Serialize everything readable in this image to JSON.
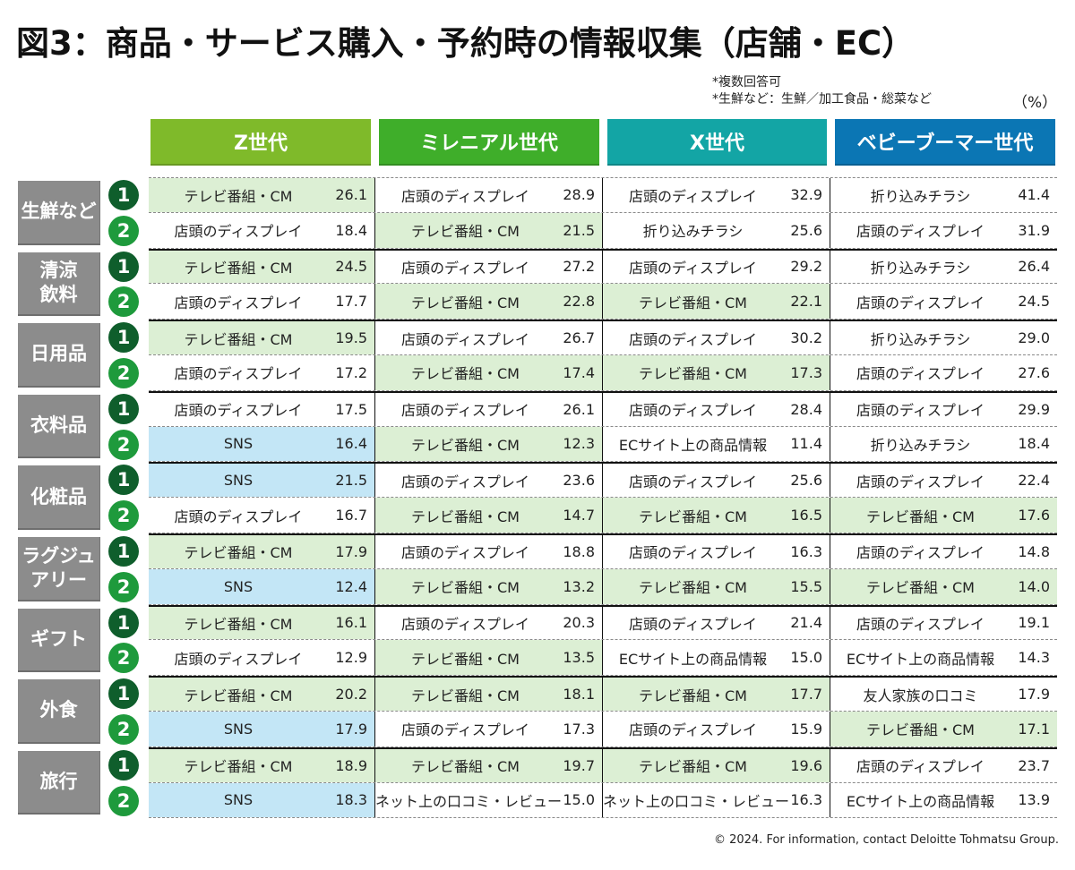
{
  "title": "図3：商品・サービス購入・予約時の情報収集（店舗・EC）",
  "notes": [
    "*複数回答可",
    "*生鮮など：生鮮／加工食品・総菜など"
  ],
  "unit": "（%）",
  "footer": "© 2024. For information, contact Deloitte Tohmatsu Group.",
  "colors": {
    "gen_z": "#7fba2a",
    "millennial": "#3fae2a",
    "gen_x": "#13a5a5",
    "boomer": "#0b76b4",
    "tv_fill": "#dcefd4",
    "sns_fill": "#c3e6f6",
    "category_box": "#8c8c8c",
    "rank1_badge": "#0f5e2c",
    "rank2_badge": "#1e9a3c"
  },
  "generations": [
    {
      "label": "Z世代",
      "color": "#7fba2a"
    },
    {
      "label": "ミレニアル世代",
      "color": "#3fae2a"
    },
    {
      "label": "X世代",
      "color": "#13a5a5"
    },
    {
      "label": "ベビーブーマー世代",
      "color": "#0b76b4"
    }
  ],
  "ranks": [
    "1",
    "2"
  ],
  "categories": [
    {
      "label": "生鮮など",
      "rows": [
        [
          {
            "src": "テレビ番組・CM",
            "val": "26.1",
            "fill": "green"
          },
          {
            "src": "店頭のディスプレイ",
            "val": "28.9",
            "fill": "none"
          },
          {
            "src": "店頭のディスプレイ",
            "val": "32.9",
            "fill": "none"
          },
          {
            "src": "折り込みチラシ",
            "val": "41.4",
            "fill": "none"
          }
        ],
        [
          {
            "src": "店頭のディスプレイ",
            "val": "18.4",
            "fill": "none"
          },
          {
            "src": "テレビ番組・CM",
            "val": "21.5",
            "fill": "green"
          },
          {
            "src": "折り込みチラシ",
            "val": "25.6",
            "fill": "none"
          },
          {
            "src": "店頭のディスプレイ",
            "val": "31.9",
            "fill": "none"
          }
        ]
      ]
    },
    {
      "label": "清涼\n飲料",
      "rows": [
        [
          {
            "src": "テレビ番組・CM",
            "val": "24.5",
            "fill": "green"
          },
          {
            "src": "店頭のディスプレイ",
            "val": "27.2",
            "fill": "none"
          },
          {
            "src": "店頭のディスプレイ",
            "val": "29.2",
            "fill": "none"
          },
          {
            "src": "折り込みチラシ",
            "val": "26.4",
            "fill": "none"
          }
        ],
        [
          {
            "src": "店頭のディスプレイ",
            "val": "17.7",
            "fill": "none"
          },
          {
            "src": "テレビ番組・CM",
            "val": "22.8",
            "fill": "green"
          },
          {
            "src": "テレビ番組・CM",
            "val": "22.1",
            "fill": "green"
          },
          {
            "src": "店頭のディスプレイ",
            "val": "24.5",
            "fill": "none"
          }
        ]
      ]
    },
    {
      "label": "日用品",
      "rows": [
        [
          {
            "src": "テレビ番組・CM",
            "val": "19.5",
            "fill": "green"
          },
          {
            "src": "店頭のディスプレイ",
            "val": "26.7",
            "fill": "none"
          },
          {
            "src": "店頭のディスプレイ",
            "val": "30.2",
            "fill": "none"
          },
          {
            "src": "折り込みチラシ",
            "val": "29.0",
            "fill": "none"
          }
        ],
        [
          {
            "src": "店頭のディスプレイ",
            "val": "17.2",
            "fill": "none"
          },
          {
            "src": "テレビ番組・CM",
            "val": "17.4",
            "fill": "green"
          },
          {
            "src": "テレビ番組・CM",
            "val": "17.3",
            "fill": "green"
          },
          {
            "src": "店頭のディスプレイ",
            "val": "27.6",
            "fill": "none"
          }
        ]
      ]
    },
    {
      "label": "衣料品",
      "rows": [
        [
          {
            "src": "店頭のディスプレイ",
            "val": "17.5",
            "fill": "none"
          },
          {
            "src": "店頭のディスプレイ",
            "val": "26.1",
            "fill": "none"
          },
          {
            "src": "店頭のディスプレイ",
            "val": "28.4",
            "fill": "none"
          },
          {
            "src": "店頭のディスプレイ",
            "val": "29.9",
            "fill": "none"
          }
        ],
        [
          {
            "src": "SNS",
            "val": "16.4",
            "fill": "blue"
          },
          {
            "src": "テレビ番組・CM",
            "val": "12.3",
            "fill": "green"
          },
          {
            "src": "ECサイト上の商品情報",
            "val": "11.4",
            "fill": "none"
          },
          {
            "src": "折り込みチラシ",
            "val": "18.4",
            "fill": "none"
          }
        ]
      ]
    },
    {
      "label": "化粧品",
      "rows": [
        [
          {
            "src": "SNS",
            "val": "21.5",
            "fill": "blue"
          },
          {
            "src": "店頭のディスプレイ",
            "val": "23.6",
            "fill": "none"
          },
          {
            "src": "店頭のディスプレイ",
            "val": "25.6",
            "fill": "none"
          },
          {
            "src": "店頭のディスプレイ",
            "val": "22.4",
            "fill": "none"
          }
        ],
        [
          {
            "src": "店頭のディスプレイ",
            "val": "16.7",
            "fill": "none"
          },
          {
            "src": "テレビ番組・CM",
            "val": "14.7",
            "fill": "green"
          },
          {
            "src": "テレビ番組・CM",
            "val": "16.5",
            "fill": "green"
          },
          {
            "src": "テレビ番組・CM",
            "val": "17.6",
            "fill": "green"
          }
        ]
      ]
    },
    {
      "label": "ラグジュ\nアリー",
      "rows": [
        [
          {
            "src": "テレビ番組・CM",
            "val": "17.9",
            "fill": "green"
          },
          {
            "src": "店頭のディスプレイ",
            "val": "18.8",
            "fill": "none"
          },
          {
            "src": "店頭のディスプレイ",
            "val": "16.3",
            "fill": "none"
          },
          {
            "src": "店頭のディスプレイ",
            "val": "14.8",
            "fill": "none"
          }
        ],
        [
          {
            "src": "SNS",
            "val": "12.4",
            "fill": "blue"
          },
          {
            "src": "テレビ番組・CM",
            "val": "13.2",
            "fill": "green"
          },
          {
            "src": "テレビ番組・CM",
            "val": "15.5",
            "fill": "green"
          },
          {
            "src": "テレビ番組・CM",
            "val": "14.0",
            "fill": "green"
          }
        ]
      ]
    },
    {
      "label": "ギフト",
      "rows": [
        [
          {
            "src": "テレビ番組・CM",
            "val": "16.1",
            "fill": "green"
          },
          {
            "src": "店頭のディスプレイ",
            "val": "20.3",
            "fill": "none"
          },
          {
            "src": "店頭のディスプレイ",
            "val": "21.4",
            "fill": "none"
          },
          {
            "src": "店頭のディスプレイ",
            "val": "19.1",
            "fill": "none"
          }
        ],
        [
          {
            "src": "店頭のディスプレイ",
            "val": "12.9",
            "fill": "none"
          },
          {
            "src": "テレビ番組・CM",
            "val": "13.5",
            "fill": "green"
          },
          {
            "src": "ECサイト上の商品情報",
            "val": "15.0",
            "fill": "none"
          },
          {
            "src": "ECサイト上の商品情報",
            "val": "14.3",
            "fill": "none"
          }
        ]
      ]
    },
    {
      "label": "外食",
      "rows": [
        [
          {
            "src": "テレビ番組・CM",
            "val": "20.2",
            "fill": "green"
          },
          {
            "src": "テレビ番組・CM",
            "val": "18.1",
            "fill": "green"
          },
          {
            "src": "テレビ番組・CM",
            "val": "17.7",
            "fill": "green"
          },
          {
            "src": "友人家族の口コミ",
            "val": "17.9",
            "fill": "none"
          }
        ],
        [
          {
            "src": "SNS",
            "val": "17.9",
            "fill": "blue"
          },
          {
            "src": "店頭のディスプレイ",
            "val": "17.3",
            "fill": "none"
          },
          {
            "src": "店頭のディスプレイ",
            "val": "15.9",
            "fill": "none"
          },
          {
            "src": "テレビ番組・CM",
            "val": "17.1",
            "fill": "green"
          }
        ]
      ]
    },
    {
      "label": "旅行",
      "rows": [
        [
          {
            "src": "テレビ番組・CM",
            "val": "18.9",
            "fill": "green"
          },
          {
            "src": "テレビ番組・CM",
            "val": "19.7",
            "fill": "green"
          },
          {
            "src": "テレビ番組・CM",
            "val": "19.6",
            "fill": "green"
          },
          {
            "src": "店頭のディスプレイ",
            "val": "23.7",
            "fill": "none"
          }
        ],
        [
          {
            "src": "SNS",
            "val": "18.3",
            "fill": "blue"
          },
          {
            "src": "ネット上の口コミ・レビュー",
            "val": "15.0",
            "fill": "none"
          },
          {
            "src": "ネット上の口コミ・レビュー",
            "val": "16.3",
            "fill": "none"
          },
          {
            "src": "ECサイト上の商品情報",
            "val": "13.9",
            "fill": "none"
          }
        ]
      ]
    }
  ]
}
